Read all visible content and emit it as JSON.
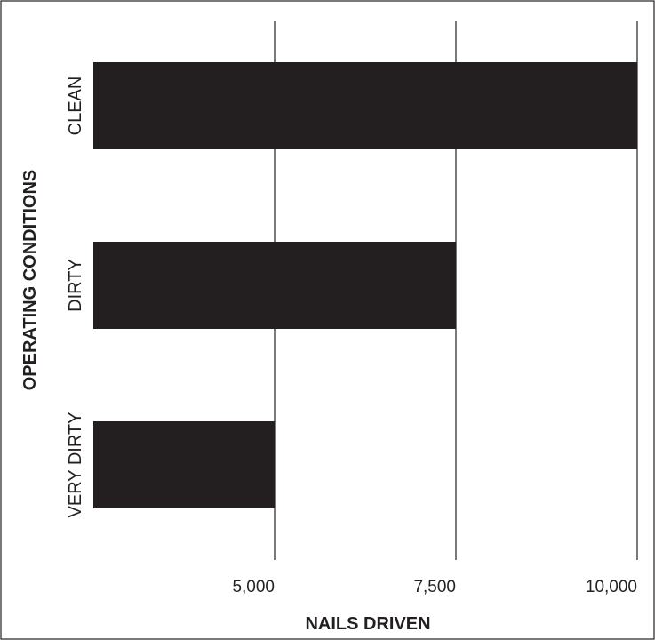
{
  "chart_data": {
    "type": "bar",
    "orientation": "horizontal",
    "categories": [
      "CLEAN",
      "DIRTY",
      "VERY DIRTY"
    ],
    "values": [
      10000,
      7500,
      5000
    ],
    "xlabel": "NAILS DRIVEN",
    "ylabel": "OPERATING CONDITIONS",
    "x_ticks": [
      5000,
      7500,
      10000
    ],
    "x_tick_labels": [
      "5,000",
      "7,500",
      "10,000"
    ],
    "xlim": [
      2500,
      10000
    ],
    "grid": "vertical",
    "bar_color": "#231f20"
  }
}
